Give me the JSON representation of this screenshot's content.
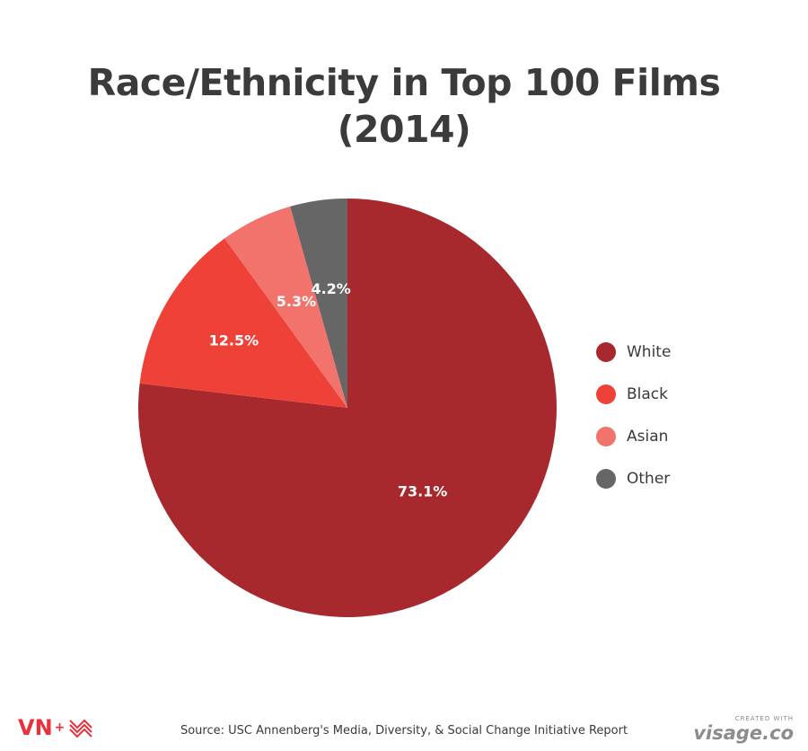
{
  "chart_data": {
    "type": "pie",
    "title_lines": [
      "Race/Ethnicity in Top 100 Films",
      "(2014)"
    ],
    "categories": [
      "White",
      "Black",
      "Asian",
      "Other"
    ],
    "values": [
      73.1,
      12.5,
      5.3,
      4.2
    ],
    "labels": [
      "73.1%",
      "12.5%",
      "5.3%",
      "4.2%"
    ],
    "colors": [
      "#a8292d",
      "#ee4238",
      "#f1736b",
      "#666666"
    ],
    "legend_position": "right",
    "start": "top",
    "direction": "clockwise"
  },
  "footer": {
    "source": "Source: USC Annenberg's Media, Diversity, & Social Change Initiative Report",
    "brand_left": "VN",
    "brand_left_plus": "+",
    "brand_right_small": "CREATED WITH",
    "brand_right": "visage.co"
  }
}
